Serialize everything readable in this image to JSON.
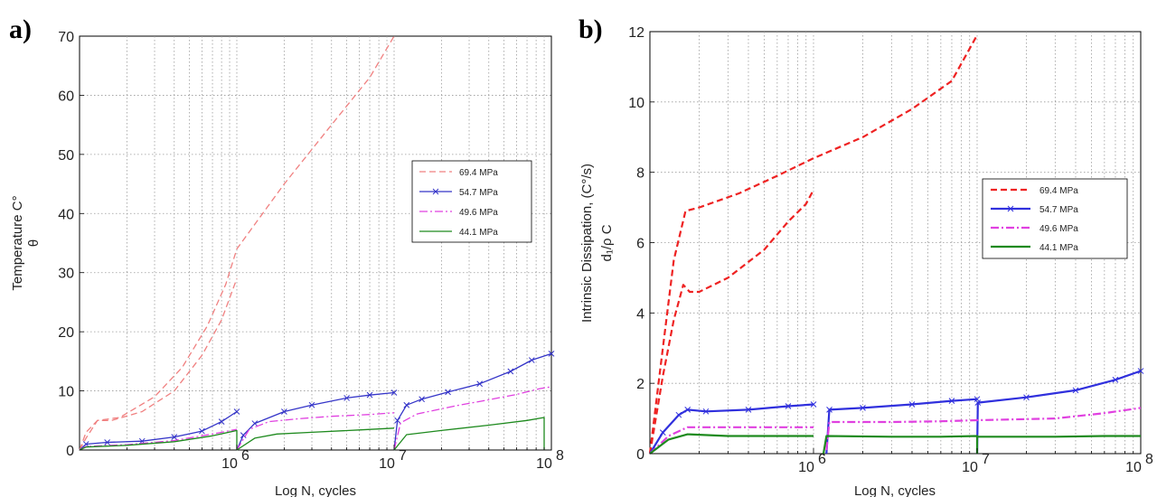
{
  "chart_data": [
    {
      "panel_label": "a)",
      "type": "line",
      "xscale": "log",
      "xlim": [
        100000,
        100000000
      ],
      "ylim": [
        0,
        70
      ],
      "xlabel": "Log N, cycles",
      "ylabel": "Temperature C°",
      "ylabel2": "θ",
      "x_tick_labels": [
        {
          "base": "10",
          "exp": "6",
          "value": 1000000
        },
        {
          "base": "10",
          "exp": "7",
          "value": 10000000
        },
        {
          "base": "10",
          "exp": "8",
          "value": 100000000
        }
      ],
      "y_tick_labels": [
        "0",
        "10",
        "20",
        "30",
        "40",
        "50",
        "60",
        "70"
      ],
      "grid": true,
      "legend_position": "center-right",
      "legend": [
        "69.4 MPa",
        "54.7 MPa",
        "49.6 MPa",
        "44.1 MPa"
      ],
      "series": [
        {
          "name": "69.4 MPa",
          "color": "#f08080",
          "style": "dashed",
          "marker": "none",
          "segments": [
            [
              [
                100000,
                0
              ],
              [
                110000,
                3
              ],
              [
                130000,
                5
              ],
              [
                160000,
                5
              ],
              [
                250000,
                6.5
              ],
              [
                400000,
                10
              ],
              [
                600000,
                16
              ],
              [
                800000,
                22
              ],
              [
                1000000,
                29
              ]
            ],
            [
              [
                100000,
                0
              ],
              [
                110000,
                2
              ],
              [
                130000,
                5
              ],
              [
                180000,
                5.5
              ],
              [
                300000,
                9
              ],
              [
                450000,
                14
              ],
              [
                650000,
                21
              ],
              [
                850000,
                28
              ],
              [
                1000000,
                34
              ],
              [
                2000000,
                45
              ],
              [
                4000000,
                55
              ],
              [
                7000000,
                63
              ],
              [
                10000000,
                70
              ]
            ]
          ]
        },
        {
          "name": "54.7 MPa",
          "color": "#3434c8",
          "style": "solid",
          "marker": "x",
          "segments": [
            [
              [
                100000,
                0
              ],
              [
                110000,
                1
              ],
              [
                150000,
                1.3
              ],
              [
                250000,
                1.5
              ],
              [
                400000,
                2.2
              ],
              [
                600000,
                3.2
              ],
              [
                800000,
                4.8
              ],
              [
                1000000,
                6.5
              ]
            ],
            [
              [
                1000000,
                0
              ],
              [
                1100000,
                2.5
              ],
              [
                1300000,
                4.5
              ],
              [
                2000000,
                6.5
              ],
              [
                3000000,
                7.6
              ],
              [
                5000000,
                8.8
              ],
              [
                7000000,
                9.3
              ],
              [
                10000000,
                9.7
              ]
            ],
            [
              [
                10000000,
                0
              ],
              [
                10500000,
                5
              ],
              [
                12000000,
                7.6
              ],
              [
                15000000,
                8.6
              ],
              [
                22000000,
                9.8
              ],
              [
                35000000,
                11.2
              ],
              [
                55000000,
                13.3
              ],
              [
                75000000,
                15.2
              ],
              [
                100000000,
                16.3
              ]
            ]
          ]
        },
        {
          "name": "49.6 MPa",
          "color": "#e040e0",
          "style": "dashdot",
          "marker": "none",
          "segments": [
            [
              [
                100000,
                0
              ],
              [
                110000,
                0.6
              ],
              [
                200000,
                0.9
              ],
              [
                400000,
                1.6
              ],
              [
                600000,
                2.4
              ],
              [
                800000,
                3.0
              ],
              [
                1000000,
                3.5
              ]
            ],
            [
              [
                1000000,
                0
              ],
              [
                1200000,
                3.5
              ],
              [
                1600000,
                4.8
              ],
              [
                2500000,
                5.3
              ],
              [
                4000000,
                5.7
              ],
              [
                7000000,
                6.0
              ],
              [
                10000000,
                6.3
              ]
            ],
            [
              [
                10000000,
                0
              ],
              [
                11000000,
                4.6
              ],
              [
                14000000,
                6.1
              ],
              [
                25000000,
                7.5
              ],
              [
                40000000,
                8.5
              ],
              [
                60000000,
                9.4
              ],
              [
                85000000,
                10.4
              ],
              [
                100000000,
                10.7
              ]
            ]
          ]
        },
        {
          "name": "44.1 MPa",
          "color": "#1e8a1e",
          "style": "solid",
          "marker": "none",
          "segments": [
            [
              [
                100000,
                0
              ],
              [
                110000,
                0.5
              ],
              [
                200000,
                0.8
              ],
              [
                400000,
                1.4
              ],
              [
                700000,
                2.4
              ],
              [
                1000000,
                3.3
              ],
              [
                1000000,
                0
              ]
            ],
            [
              [
                1000000,
                0
              ],
              [
                1300000,
                2
              ],
              [
                1800000,
                2.7
              ],
              [
                3000000,
                3.0
              ],
              [
                6000000,
                3.4
              ],
              [
                10000000,
                3.7
              ]
            ],
            [
              [
                10000000,
                0
              ],
              [
                12000000,
                2.6
              ],
              [
                20000000,
                3.3
              ],
              [
                40000000,
                4.2
              ],
              [
                70000000,
                5.0
              ],
              [
                90000000,
                5.5
              ],
              [
                90000000,
                0
              ]
            ]
          ]
        }
      ]
    },
    {
      "panel_label": "b)",
      "type": "line",
      "xscale": "log",
      "xlim": [
        100000,
        100000000
      ],
      "ylim": [
        0,
        12
      ],
      "xlabel": "Log N, cycles",
      "ylabel": "Intrinsic Dissipation, (C°/s)",
      "ylabel2": "d₁/ρ C",
      "x_tick_labels": [
        {
          "base": "10",
          "exp": "6",
          "value": 1000000
        },
        {
          "base": "10",
          "exp": "7",
          "value": 10000000
        },
        {
          "base": "10",
          "exp": "8",
          "value": 100000000
        }
      ],
      "y_tick_labels": [
        "0",
        "2",
        "4",
        "6",
        "8",
        "10",
        "12"
      ],
      "grid": true,
      "legend_position": "center-right",
      "legend": [
        "69.4 MPa",
        "54.7 MPa",
        "49.6 MPa",
        "44.1 MPa"
      ],
      "series": [
        {
          "name": "69.4 MPa",
          "color": "#ee2222",
          "style": "dashed",
          "marker": "none",
          "segments": [
            [
              [
                100000,
                0
              ],
              [
                120000,
                2.2
              ],
              [
                140000,
                3.8
              ],
              [
                160000,
                4.8
              ],
              [
                175000,
                4.6
              ],
              [
                200000,
                4.6
              ],
              [
                300000,
                5.0
              ],
              [
                500000,
                5.8
              ],
              [
                700000,
                6.6
              ],
              [
                900000,
                7.1
              ],
              [
                1000000,
                7.5
              ]
            ],
            [
              [
                100000,
                0
              ],
              [
                120000,
                3
              ],
              [
                140000,
                5.5
              ],
              [
                165000,
                6.9
              ],
              [
                200000,
                7.0
              ],
              [
                350000,
                7.4
              ],
              [
                600000,
                7.9
              ],
              [
                1000000,
                8.4
              ],
              [
                2000000,
                9.0
              ],
              [
                4000000,
                9.8
              ],
              [
                7000000,
                10.6
              ],
              [
                10000000,
                11.9
              ]
            ]
          ]
        },
        {
          "name": "54.7 MPa",
          "color": "#3030dd",
          "style": "solid",
          "marker": "x",
          "segments": [
            [
              [
                100000,
                0
              ],
              [
                120000,
                0.6
              ],
              [
                150000,
                1.1
              ],
              [
                170000,
                1.25
              ],
              [
                220000,
                1.2
              ],
              [
                400000,
                1.25
              ],
              [
                700000,
                1.35
              ],
              [
                1000000,
                1.4
              ]
            ],
            [
              [
                1200000,
                0
              ],
              [
                1250000,
                1.25
              ],
              [
                2000000,
                1.3
              ],
              [
                4000000,
                1.4
              ],
              [
                7000000,
                1.5
              ],
              [
                10000000,
                1.55
              ]
            ],
            [
              [
                10000000,
                0
              ],
              [
                10100000,
                1.45
              ],
              [
                20000000,
                1.6
              ],
              [
                40000000,
                1.8
              ],
              [
                70000000,
                2.1
              ],
              [
                100000000,
                2.35
              ]
            ]
          ]
        },
        {
          "name": "49.6 MPa",
          "color": "#e040e0",
          "style": "dashdot",
          "marker": "none",
          "segments": [
            [
              [
                100000,
                0
              ],
              [
                130000,
                0.5
              ],
              [
                170000,
                0.75
              ],
              [
                300000,
                0.75
              ],
              [
                600000,
                0.75
              ],
              [
                1000000,
                0.75
              ]
            ],
            [
              [
                1200000,
                0.1
              ],
              [
                1250000,
                0.9
              ],
              [
                3000000,
                0.9
              ],
              [
                6000000,
                0.92
              ],
              [
                10000000,
                0.95
              ],
              [
                30000000,
                1.0
              ],
              [
                60000000,
                1.15
              ],
              [
                100000000,
                1.3
              ]
            ]
          ]
        },
        {
          "name": "44.1 MPa",
          "color": "#1e8a1e",
          "style": "solid",
          "marker": "none",
          "segments": [
            [
              [
                100000,
                0
              ],
              [
                130000,
                0.4
              ],
              [
                170000,
                0.55
              ],
              [
                300000,
                0.5
              ],
              [
                600000,
                0.5
              ],
              [
                1000000,
                0.5
              ]
            ],
            [
              [
                1150000,
                0
              ],
              [
                1200000,
                0.5
              ],
              [
                3000000,
                0.48
              ],
              [
                6000000,
                0.48
              ],
              [
                10000000,
                0.5
              ],
              [
                10000000,
                0
              ]
            ],
            [
              [
                10000000,
                0.48
              ],
              [
                30000000,
                0.48
              ],
              [
                60000000,
                0.5
              ],
              [
                100000000,
                0.5
              ]
            ]
          ]
        }
      ]
    }
  ]
}
